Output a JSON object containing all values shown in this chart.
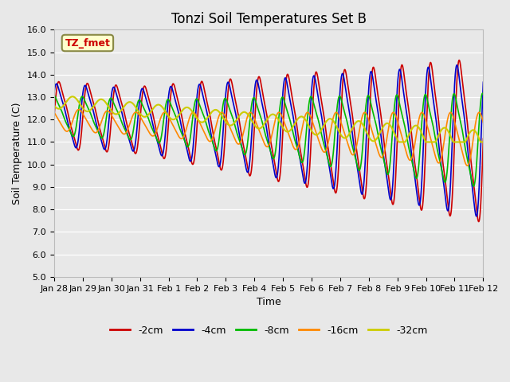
{
  "title": "Tonzi Soil Temperatures Set B",
  "xlabel": "Time",
  "ylabel": "Soil Temperature (C)",
  "ylim": [
    5.0,
    16.0
  ],
  "yticks": [
    5.0,
    6.0,
    7.0,
    8.0,
    9.0,
    10.0,
    11.0,
    12.0,
    13.0,
    14.0,
    15.0,
    16.0
  ],
  "xtick_labels": [
    "Jan 28",
    "Jan 29",
    "Jan 30",
    "Jan 31",
    "Feb 1",
    "Feb 2",
    "Feb 3",
    "Feb 4",
    "Feb 5",
    "Feb 6",
    "Feb 7",
    "Feb 8",
    "Feb 9",
    "Feb 10",
    "Feb 11",
    "Feb 12"
  ],
  "series": [
    {
      "label": "-2cm",
      "color": "#cc0000",
      "lw": 1.2
    },
    {
      "label": "-4cm",
      "color": "#0000cc",
      "lw": 1.2
    },
    {
      "label": "-8cm",
      "color": "#00bb00",
      "lw": 1.2
    },
    {
      "label": "-16cm",
      "color": "#ff8800",
      "lw": 1.2
    },
    {
      "label": "-32cm",
      "color": "#cccc00",
      "lw": 1.5
    }
  ],
  "annotation_text": "TZ_fmet",
  "annotation_color": "#cc0000",
  "annotation_bg": "#ffffcc",
  "annotation_border": "#888844",
  "bg_color": "#e8e8e8",
  "plot_bg_color": "#e8e8e8",
  "title_fontsize": 12,
  "label_fontsize": 9,
  "tick_fontsize": 8
}
